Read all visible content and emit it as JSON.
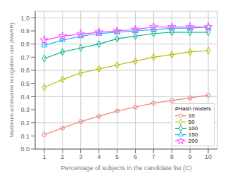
{
  "chart_data": {
    "type": "line",
    "xlabel": "Percentage of subjects in the candidate list (C)",
    "ylabel": "Maximum achievable recognition rate (MARR)",
    "legend_title": "#Hash models",
    "x": [
      1,
      2,
      3,
      4,
      5,
      6,
      7,
      8,
      9,
      10
    ],
    "series": [
      {
        "name": "10",
        "color": "#f08080",
        "marker": "circle",
        "values": [
          0.11,
          0.16,
          0.21,
          0.25,
          0.29,
          0.32,
          0.35,
          0.37,
          0.39,
          0.41
        ]
      },
      {
        "name": "50",
        "color": "#b8b800",
        "marker": "diamond",
        "values": [
          0.47,
          0.53,
          0.58,
          0.61,
          0.64,
          0.67,
          0.7,
          0.72,
          0.74,
          0.75
        ]
      },
      {
        "name": "100",
        "color": "#00b890",
        "marker": "diamond",
        "values": [
          0.69,
          0.74,
          0.77,
          0.8,
          0.84,
          0.86,
          0.88,
          0.89,
          0.89,
          0.89
        ]
      },
      {
        "name": "150",
        "color": "#00bbff",
        "marker": "triangle",
        "values": [
          0.79,
          0.83,
          0.86,
          0.88,
          0.89,
          0.9,
          0.91,
          0.92,
          0.92,
          0.93
        ]
      },
      {
        "name": "200",
        "color": "#ff44ff",
        "marker": "star",
        "values": [
          0.83,
          0.86,
          0.875,
          0.89,
          0.9,
          0.91,
          0.93,
          0.93,
          0.93,
          0.93
        ]
      }
    ],
    "xlim": [
      0.5,
      10.5
    ],
    "ylim": [
      0.0,
      1.05
    ],
    "xticks": [
      1,
      2,
      3,
      4,
      5,
      6,
      7,
      8,
      9,
      10
    ],
    "yticks": [
      {
        "value": 0,
        "label": "0.0"
      },
      0.1,
      0.2,
      0.3,
      0.4,
      0.5,
      0.6,
      0.7,
      0.8,
      0.9,
      {
        "value": 1,
        "label": "1.0"
      }
    ],
    "grid": true,
    "legend": "lower right"
  }
}
